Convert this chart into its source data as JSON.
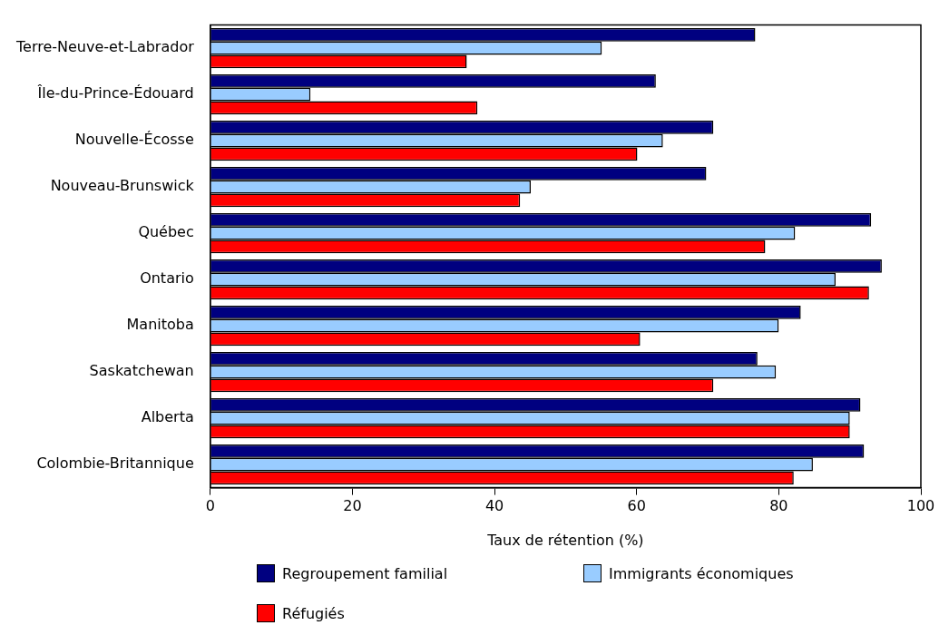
{
  "chart_data": {
    "type": "bar",
    "orientation": "horizontal",
    "xlabel": "Taux de rétention (%)",
    "categories": [
      "Terre-Neuve-et-Labrador",
      "Île-du-Prince-Édouard",
      "Nouvelle-Écosse",
      "Nouveau-Brunswick",
      "Québec",
      "Ontario",
      "Manitoba",
      "Saskatchewan",
      "Alberta",
      "Colombie-Britannique"
    ],
    "series": [
      {
        "name": "Regroupement familial",
        "color": "#000080",
        "values": [
          76.7,
          62.7,
          70.8,
          69.8,
          93.0,
          94.5,
          83.1,
          77.0,
          91.5,
          92.0
        ]
      },
      {
        "name": "Immigrants économiques",
        "color": "#99ccff",
        "values": [
          55.1,
          14.1,
          63.7,
          45.1,
          82.3,
          88.0,
          80.0,
          79.6,
          90.0,
          84.8
        ]
      },
      {
        "name": "Réfugiés",
        "color": "#ff0000",
        "values": [
          36.1,
          37.6,
          60.1,
          43.6,
          78.1,
          92.7,
          60.5,
          70.8,
          90.0,
          82.1
        ]
      }
    ],
    "xlim": [
      0,
      100
    ],
    "xticks": [
      0,
      20,
      40,
      60,
      80,
      100
    ],
    "grid": false,
    "legend": "bottom"
  }
}
